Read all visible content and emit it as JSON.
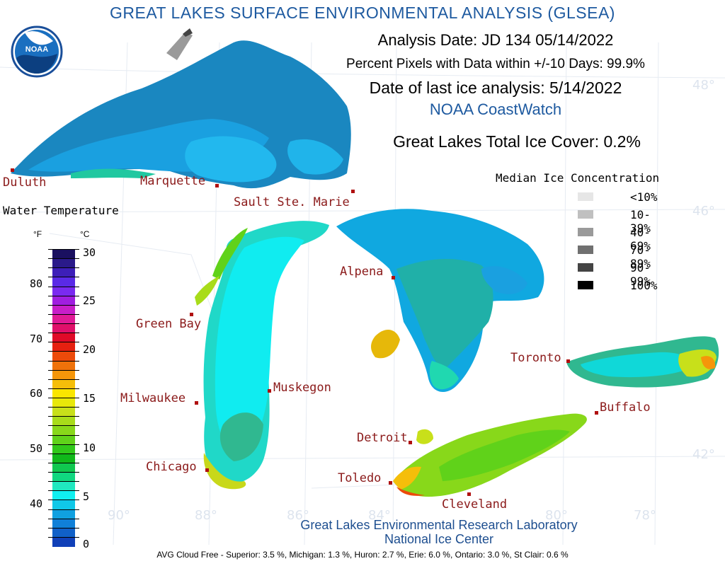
{
  "title": "GREAT LAKES SURFACE ENVIRONMENTAL ANALYSIS (GLSEA)",
  "header": {
    "analysis_date": "Analysis Date:  JD 134 05/14/2022",
    "percent_pixels": "Percent Pixels with Data within +/-10 Days:  99.9%",
    "last_ice": "Date of last ice analysis: 5/14/2022",
    "source": "NOAA CoastWatch",
    "total_ice": "Great Lakes Total Ice Cover:   0.2%"
  },
  "logo_text": "NOAA",
  "water_temp": {
    "title": "Water Temperature",
    "unit_f": "°F",
    "unit_c": "°C",
    "f_ticks": [
      "80",
      "70",
      "60",
      "50",
      "40"
    ],
    "c_ticks": [
      "30",
      "25",
      "20",
      "15",
      "10",
      "5",
      "0"
    ],
    "colors": [
      "#1a1060",
      "#2a1a8a",
      "#3d1fb8",
      "#5a2ae6",
      "#7a2af0",
      "#a01ee0",
      "#c81ec8",
      "#e01a96",
      "#e0106a",
      "#e00a28",
      "#e62010",
      "#ec4a0a",
      "#ef720a",
      "#f5960a",
      "#f5be0a",
      "#fae600",
      "#e8e80a",
      "#c8e01a",
      "#a8dc1a",
      "#88d81a",
      "#60d21a",
      "#30c81a",
      "#10b81a",
      "#10c850",
      "#10d880",
      "#20e8c0",
      "#10f0f0",
      "#10c8e8",
      "#10a0e0",
      "#1080d8",
      "#1060c8",
      "#1040b8"
    ]
  },
  "ice_legend": {
    "title": "Median Ice Concentration",
    "items": [
      {
        "label": "<10%",
        "color": "#e6e6e6"
      },
      {
        "label": "10-39%",
        "color": "#c0c0c0"
      },
      {
        "label": "40-69%",
        "color": "#9a9a9a"
      },
      {
        "label": "70-89%",
        "color": "#707070"
      },
      {
        "label": "90-99%",
        "color": "#444444"
      },
      {
        "label": "100%",
        "color": "#000000"
      }
    ]
  },
  "cities": {
    "duluth": "Duluth",
    "marquette": "Marquette",
    "sault": "Sault Ste. Marie",
    "alpena": "Alpena",
    "green_bay": "Green Bay",
    "milwaukee": "Milwaukee",
    "muskegon": "Muskegon",
    "chicago": "Chicago",
    "detroit": "Detroit",
    "toledo": "Toledo",
    "cleveland": "Cleveland",
    "toronto": "Toronto",
    "buffalo": "Buffalo"
  },
  "grid_labels": {
    "lat_48": "48°",
    "lat_46": "46°",
    "lat_42": "42°",
    "lon_90": "90°",
    "lon_88": "88°",
    "lon_86": "86°",
    "lon_84": "84°",
    "lon_80": "80°",
    "lon_78": "78°"
  },
  "footer": {
    "lab": "Great Lakes Environmental Research Laboratory",
    "center": "National Ice Center",
    "cloud_free": "AVG Cloud Free - Superior:   3.5 %, Michigan:   1.3 %, Huron:   2.7 %, Erie:  6.0 %, Ontario:  3.0 %, St Clair:  0.6 %"
  }
}
